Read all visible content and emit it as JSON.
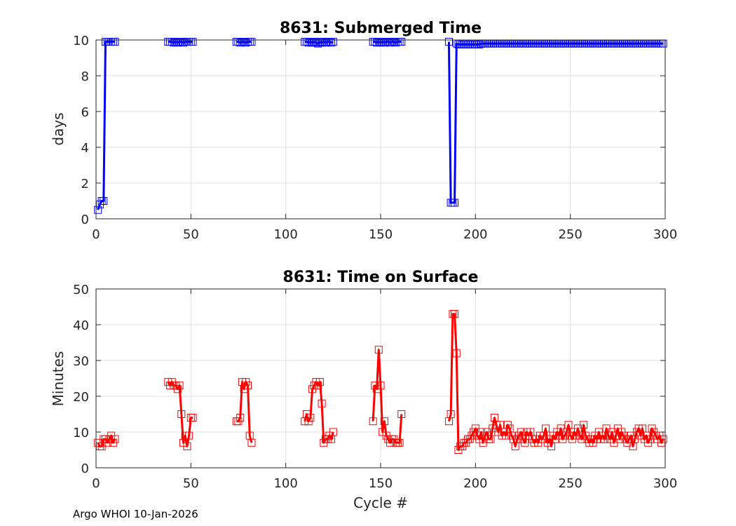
{
  "footer": "Argo WHOI 10-Jan-2026",
  "chart_data": [
    {
      "type": "line",
      "title": "8631: Submerged Time",
      "xlabel": "",
      "ylabel": "days",
      "xlim": [
        0,
        300
      ],
      "ylim": [
        0,
        10
      ],
      "xticks": [
        0,
        50,
        100,
        150,
        200,
        250,
        300
      ],
      "yticks": [
        0,
        2,
        4,
        6,
        8,
        10
      ],
      "grid": true,
      "color": "#0000ff",
      "marker": "square",
      "segments": [
        {
          "x": [
            1,
            2,
            3,
            4,
            5,
            6,
            7,
            8,
            9,
            10
          ],
          "y": [
            0.5,
            0.8,
            1.0,
            1.0,
            9.9,
            9.9,
            9.9,
            9.9,
            9.9,
            9.9
          ]
        },
        {
          "x": [
            38,
            39,
            40,
            41,
            42,
            43,
            44,
            45,
            46,
            47,
            48,
            49,
            50,
            51
          ],
          "y": [
            9.9,
            9.9,
            9.9,
            9.85,
            9.9,
            9.85,
            9.9,
            9.9,
            9.85,
            9.9,
            9.9,
            9.9,
            9.9,
            9.9
          ]
        },
        {
          "x": [
            74,
            75,
            76,
            77,
            78,
            79,
            80,
            81,
            82
          ],
          "y": [
            9.9,
            9.9,
            9.85,
            9.9,
            9.9,
            9.85,
            9.9,
            9.9,
            9.9
          ]
        },
        {
          "x": [
            110,
            111,
            112,
            113,
            114,
            115,
            116,
            117,
            118,
            119,
            120,
            121,
            122,
            123,
            124,
            125
          ],
          "y": [
            9.9,
            9.9,
            9.85,
            9.9,
            9.85,
            9.9,
            9.85,
            9.8,
            9.9,
            9.85,
            9.9,
            9.85,
            9.9,
            9.9,
            9.85,
            9.9
          ]
        },
        {
          "x": [
            146,
            147,
            148,
            149,
            150,
            151,
            152,
            153,
            154,
            155,
            156,
            157,
            158,
            159,
            160,
            161
          ],
          "y": [
            9.9,
            9.9,
            9.85,
            9.9,
            9.85,
            9.9,
            9.85,
            9.9,
            9.9,
            9.85,
            9.9,
            9.9,
            9.85,
            9.9,
            9.9,
            9.9
          ]
        },
        {
          "x": [
            186,
            187,
            188,
            189,
            190,
            191,
            192,
            193,
            194,
            195,
            196,
            197,
            198,
            199,
            200,
            201,
            202,
            203,
            204,
            205,
            206,
            207,
            208,
            209,
            210,
            211,
            212,
            213,
            214,
            215,
            216,
            217,
            218,
            219,
            220,
            221,
            222,
            223,
            224,
            225,
            226,
            227,
            228,
            229,
            230,
            231,
            232,
            233,
            234,
            235,
            236,
            237,
            238,
            239,
            240,
            241,
            242,
            243,
            244,
            245,
            246,
            247,
            248,
            249,
            250,
            251,
            252,
            253,
            254,
            255,
            256,
            257,
            258,
            259,
            260,
            261,
            262,
            263,
            264,
            265,
            266,
            267,
            268,
            269,
            270,
            271,
            272,
            273,
            274,
            275,
            276,
            277,
            278,
            279,
            280,
            281,
            282,
            283,
            284,
            285,
            286,
            287,
            288,
            289,
            290,
            291,
            292,
            293,
            294,
            295,
            296,
            297,
            298,
            299
          ],
          "y": [
            9.9,
            0.9,
            0.9,
            0.9,
            9.8,
            9.75,
            9.75,
            9.75,
            9.75,
            9.75,
            9.75,
            9.75,
            9.75,
            9.75,
            9.75,
            9.75,
            9.75,
            9.8,
            9.8,
            9.8,
            9.8,
            9.8,
            9.8,
            9.8,
            9.8,
            9.8,
            9.8,
            9.8,
            9.8,
            9.8,
            9.8,
            9.8,
            9.8,
            9.8,
            9.8,
            9.8,
            9.8,
            9.8,
            9.8,
            9.8,
            9.8,
            9.8,
            9.8,
            9.8,
            9.8,
            9.8,
            9.8,
            9.8,
            9.8,
            9.8,
            9.8,
            9.8,
            9.8,
            9.8,
            9.8,
            9.8,
            9.8,
            9.8,
            9.8,
            9.8,
            9.8,
            9.8,
            9.8,
            9.8,
            9.8,
            9.8,
            9.8,
            9.8,
            9.8,
            9.8,
            9.8,
            9.8,
            9.8,
            9.8,
            9.8,
            9.8,
            9.8,
            9.8,
            9.8,
            9.8,
            9.8,
            9.8,
            9.8,
            9.8,
            9.8,
            9.8,
            9.8,
            9.8,
            9.8,
            9.8,
            9.8,
            9.8,
            9.8,
            9.8,
            9.8,
            9.8,
            9.8,
            9.8,
            9.8,
            9.8,
            9.8,
            9.8,
            9.8,
            9.8,
            9.8,
            9.8,
            9.8,
            9.8,
            9.8,
            9.8,
            9.8,
            9.8,
            9.8,
            9.8
          ]
        }
      ]
    },
    {
      "type": "line",
      "title": "8631: Time on Surface",
      "xlabel": "Cycle #",
      "ylabel": "Minutes",
      "xlim": [
        0,
        300
      ],
      "ylim": [
        0,
        50
      ],
      "xticks": [
        0,
        50,
        100,
        150,
        200,
        250,
        300
      ],
      "yticks": [
        0,
        10,
        20,
        30,
        40,
        50
      ],
      "grid": true,
      "color": "#ff0000",
      "marker": "square",
      "segments": [
        {
          "x": [
            1,
            2,
            3,
            4,
            5,
            6,
            7,
            8,
            9,
            10
          ],
          "y": [
            7,
            6,
            6,
            8,
            8,
            7,
            8,
            9,
            7,
            8
          ]
        },
        {
          "x": [
            38,
            39,
            40,
            41,
            42,
            43,
            44,
            45,
            46,
            47,
            48,
            49,
            50,
            51
          ],
          "y": [
            24,
            23,
            24,
            23,
            23,
            22,
            23,
            15,
            7,
            9,
            6,
            9,
            14,
            14
          ]
        },
        {
          "x": [
            74,
            75,
            76,
            77,
            78,
            79,
            80,
            81,
            82
          ],
          "y": [
            13,
            13,
            14,
            24,
            22,
            24,
            23,
            9,
            7
          ]
        },
        {
          "x": [
            110,
            111,
            112,
            113,
            114,
            115,
            116,
            117,
            118,
            119,
            120,
            121,
            122,
            123,
            124,
            125
          ],
          "y": [
            13,
            15,
            13,
            14,
            22,
            23,
            24,
            23,
            24,
            18,
            7,
            8,
            8,
            9,
            8,
            10
          ]
        },
        {
          "x": [
            146,
            147,
            148,
            149,
            150,
            151,
            152,
            153,
            154,
            155,
            156,
            157,
            158,
            159,
            160,
            161
          ],
          "y": [
            13,
            23,
            22,
            33,
            23,
            10,
            13,
            9,
            8,
            7,
            8,
            8,
            7,
            7,
            7,
            15
          ]
        },
        {
          "x": [
            186,
            187,
            188,
            189,
            190,
            191,
            192,
            193,
            194,
            195,
            196,
            197,
            198,
            199,
            200,
            201,
            202,
            203,
            204,
            205,
            206,
            207,
            208,
            209,
            210,
            211,
            212,
            213,
            214,
            215,
            216,
            217,
            218,
            219,
            220,
            221,
            222,
            223,
            224,
            225,
            226,
            227,
            228,
            229,
            230,
            231,
            232,
            233,
            234,
            235,
            236,
            237,
            238,
            239,
            240,
            241,
            242,
            243,
            244,
            245,
            246,
            247,
            248,
            249,
            250,
            251,
            252,
            253,
            254,
            255,
            256,
            257,
            258,
            259,
            260,
            261,
            262,
            263,
            264,
            265,
            266,
            267,
            268,
            269,
            270,
            271,
            272,
            273,
            274,
            275,
            276,
            277,
            278,
            279,
            280,
            281,
            282,
            283,
            284,
            285,
            286,
            287,
            288,
            289,
            290,
            291,
            292,
            293,
            294,
            295,
            296,
            297,
            298,
            299
          ],
          "y": [
            13,
            15,
            43,
            43,
            32,
            5,
            6,
            6,
            7,
            7,
            8,
            8,
            9,
            10,
            11,
            9,
            8,
            10,
            7,
            9,
            10,
            8,
            8,
            11,
            14,
            12,
            10,
            12,
            9,
            10,
            9,
            12,
            11,
            9,
            8,
            6,
            8,
            9,
            10,
            8,
            7,
            10,
            9,
            10,
            8,
            7,
            8,
            7,
            9,
            8,
            9,
            11,
            7,
            8,
            6,
            9,
            8,
            10,
            9,
            11,
            8,
            9,
            10,
            12,
            9,
            8,
            10,
            9,
            11,
            9,
            8,
            12,
            9,
            8,
            7,
            8,
            7,
            9,
            8,
            10,
            8,
            9,
            8,
            11,
            9,
            8,
            10,
            7,
            9,
            11,
            8,
            10,
            9,
            8,
            7,
            8,
            9,
            6,
            8,
            10,
            11,
            9,
            11,
            8,
            9,
            7,
            8,
            11,
            10,
            9,
            8,
            9,
            7,
            8
          ]
        }
      ]
    }
  ]
}
